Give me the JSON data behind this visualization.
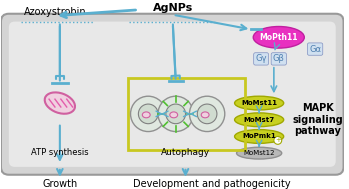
{
  "bg_color": "#e8e8e8",
  "cell_color": "#d8d8d8",
  "arrow_color": "#5aafcf",
  "mapk_box_color": "#c8d850",
  "autophagy_box_color": "#c8d850",
  "mopth11_color": "#e040c0",
  "momst_color": "#c8d020",
  "momst12_color": "#b0b0b0",
  "mito_color": "#e040a0",
  "title_top_left": "Azoxystrobin",
  "title_top_center": "AgNPs",
  "label_atp": "ATP synthesis",
  "label_autophagy": "Autophagy",
  "label_mapk": "MAPK\nsignaling\npathway",
  "label_growth": "Growth",
  "label_devpath": "Development and pathogenicity",
  "label_mopth11": "MoPth11",
  "label_gy": "Gγ",
  "label_gb": "Gβ",
  "label_ga": "Gα",
  "label_momst11": "MoMst11",
  "label_momst7": "MoMst7",
  "label_mopmk1": "MoPmk1",
  "label_momst12": "MoMst12"
}
